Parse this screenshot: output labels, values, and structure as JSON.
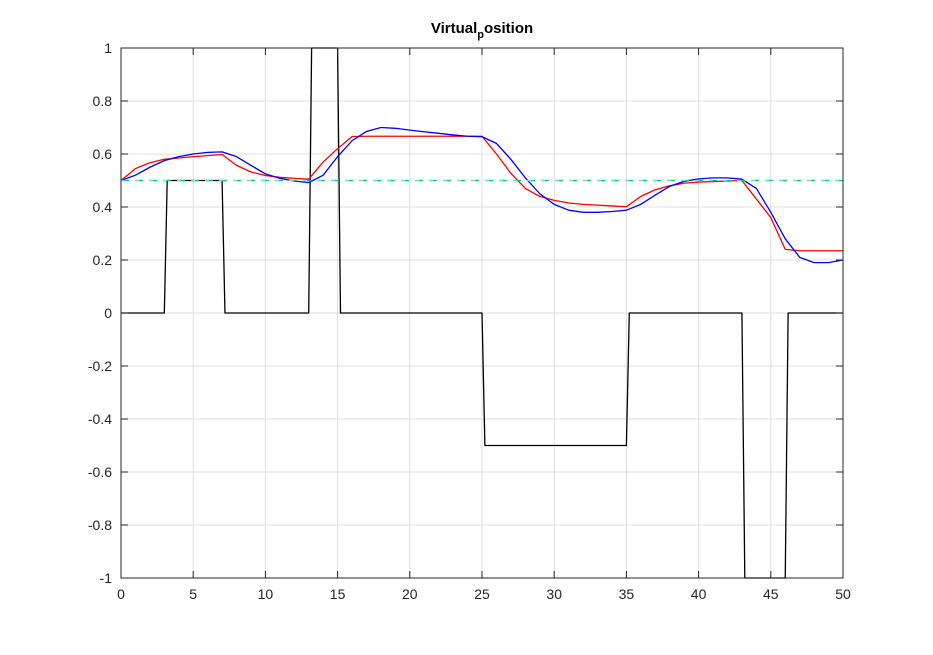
{
  "chart_data": {
    "type": "line",
    "title": {
      "main": "Virtual",
      "subscript": "p",
      "rest": "osition"
    },
    "xlabel": "",
    "ylabel": "",
    "xlim": [
      0,
      50
    ],
    "ylim": [
      -1,
      1
    ],
    "xticks": [
      "0",
      "5",
      "10",
      "15",
      "20",
      "25",
      "30",
      "35",
      "40",
      "45",
      "50"
    ],
    "yticks": [
      "1",
      "0.8",
      "0.6",
      "0.4",
      "0.2",
      "0",
      "-0.2",
      "-0.4",
      "-0.6",
      "-0.8",
      "-1"
    ],
    "grid": true,
    "legend": "none",
    "series": [
      {
        "color": "#000000",
        "x": [
          0,
          3,
          3.2,
          7,
          7.2,
          13,
          13.2,
          15,
          15.2,
          25,
          25.2,
          35,
          35.2,
          43,
          43.2,
          46,
          46.2,
          50
        ],
        "y": [
          0,
          0,
          0.5,
          0.5,
          0,
          0,
          1,
          1,
          0,
          0,
          -0.5,
          -0.5,
          0,
          0,
          -1,
          -1,
          0,
          0
        ]
      },
      {
        "color": "#ff0000",
        "x": [
          0,
          1,
          2,
          3,
          4,
          5,
          6,
          7,
          8,
          9,
          10,
          11,
          12,
          13,
          14,
          15,
          16,
          17,
          18,
          20,
          22,
          25,
          26,
          27,
          28,
          29,
          30,
          31,
          32,
          33,
          34,
          35,
          36,
          37,
          38,
          39,
          40,
          41,
          42,
          43,
          44,
          45,
          46,
          47,
          48,
          50
        ],
        "y": [
          0.5,
          0.545,
          0.567,
          0.58,
          0.585,
          0.59,
          0.594,
          0.598,
          0.557,
          0.532,
          0.519,
          0.512,
          0.508,
          0.505,
          0.57,
          0.62,
          0.666,
          0.667,
          0.667,
          0.667,
          0.667,
          0.667,
          0.6,
          0.527,
          0.47,
          0.44,
          0.425,
          0.415,
          0.41,
          0.407,
          0.404,
          0.401,
          0.44,
          0.465,
          0.48,
          0.49,
          0.494,
          0.496,
          0.498,
          0.5,
          0.43,
          0.36,
          0.24,
          0.235,
          0.235,
          0.235
        ]
      },
      {
        "color": "#0000ff",
        "x": [
          0,
          1,
          2,
          3,
          4,
          5,
          6,
          7,
          8,
          9,
          10,
          11,
          12,
          13,
          14,
          15,
          16,
          17,
          18,
          19,
          20,
          21,
          22,
          23,
          24,
          25,
          26,
          27,
          28,
          29,
          30,
          31,
          32,
          33,
          34,
          35,
          36,
          37,
          38,
          39,
          40,
          41,
          42,
          43,
          44,
          45,
          46,
          47,
          48,
          49,
          50
        ],
        "y": [
          0.5,
          0.52,
          0.55,
          0.575,
          0.59,
          0.6,
          0.606,
          0.608,
          0.59,
          0.557,
          0.525,
          0.508,
          0.498,
          0.492,
          0.52,
          0.59,
          0.65,
          0.685,
          0.7,
          0.697,
          0.69,
          0.684,
          0.678,
          0.672,
          0.667,
          0.665,
          0.64,
          0.58,
          0.51,
          0.45,
          0.41,
          0.388,
          0.38,
          0.38,
          0.383,
          0.388,
          0.41,
          0.445,
          0.478,
          0.497,
          0.506,
          0.51,
          0.51,
          0.505,
          0.47,
          0.38,
          0.28,
          0.21,
          0.19,
          0.19,
          0.2
        ]
      },
      {
        "color": "#00cc66",
        "x": [
          0,
          50
        ],
        "y": [
          0.5,
          0.5
        ]
      },
      {
        "color": "#66ddff",
        "x": [
          0,
          50
        ],
        "y": [
          0.5,
          0.5
        ]
      }
    ]
  }
}
